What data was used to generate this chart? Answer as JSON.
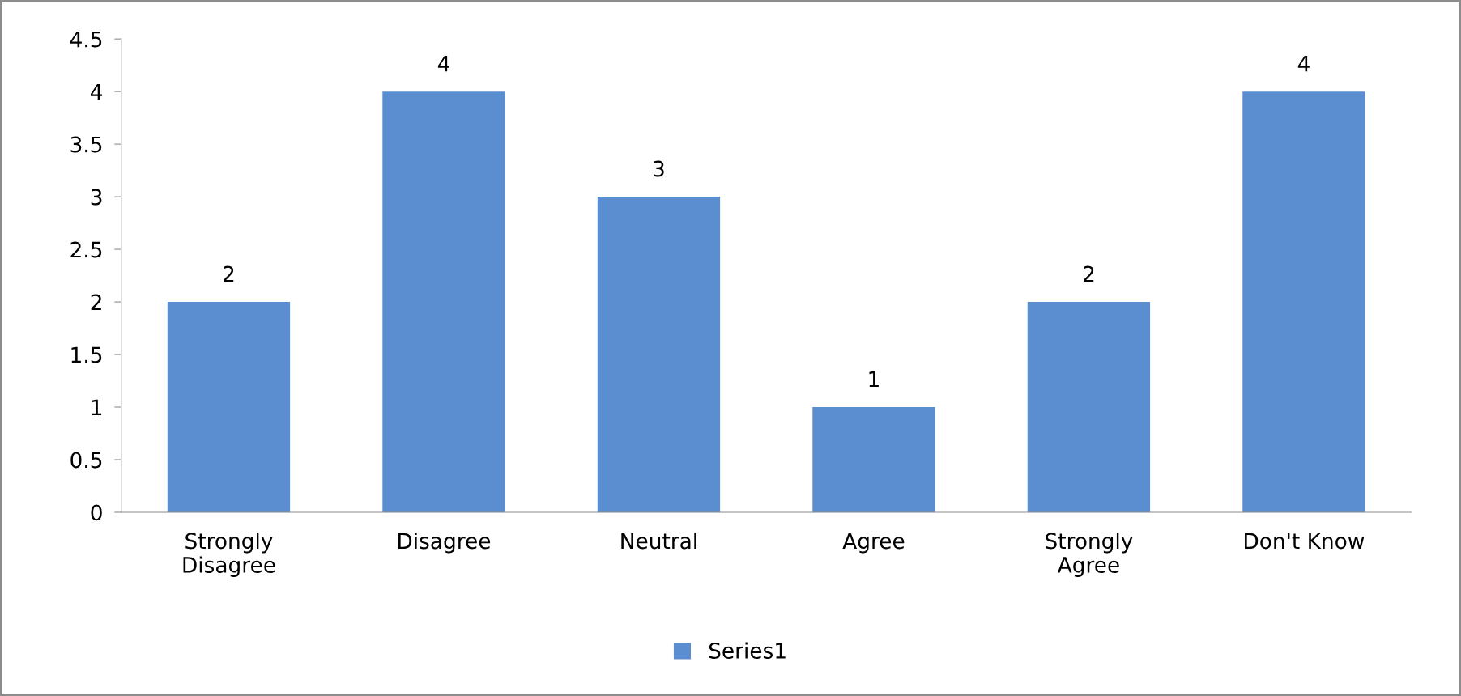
{
  "chart_data": {
    "type": "bar",
    "categories": [
      "Strongly\nDisagree",
      "Disagree",
      "Neutral",
      "Agree",
      "Strongly\nAgree",
      "Don't Know"
    ],
    "series": [
      {
        "name": "Series1",
        "color": "#5b8ed0",
        "values": [
          2,
          4,
          3,
          1,
          2,
          4
        ]
      }
    ],
    "ylim": [
      0,
      4.5
    ],
    "yticks": [
      0,
      0.5,
      1,
      1.5,
      2,
      2.5,
      3,
      3.5,
      4,
      4.5
    ],
    "data_labels": true,
    "grid": false,
    "legend": "bottom"
  }
}
